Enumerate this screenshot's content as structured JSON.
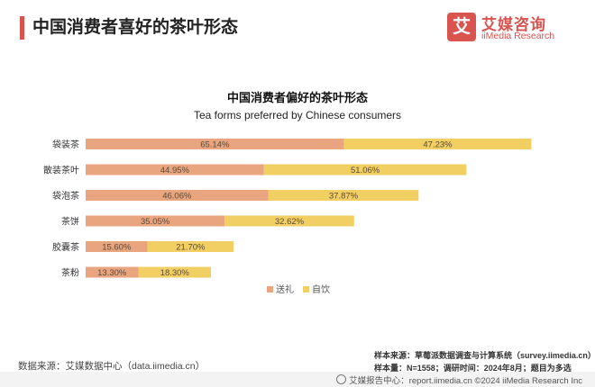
{
  "header": {
    "title": "中国消费者喜好的茶叶形态",
    "logo_mark": "艾",
    "logo_cn": "艾媒咨询",
    "logo_en": "iiMedia Research"
  },
  "chart_data": {
    "type": "bar",
    "orientation": "horizontal",
    "stacked": true,
    "title": "中国消费者偏好的茶叶形态",
    "subtitle": "Tea forms preferred by Chinese consumers",
    "categories": [
      "袋装茶",
      "散装茶叶",
      "袋泡茶",
      "茶饼",
      "胶囊茶",
      "茶粉"
    ],
    "series": [
      {
        "name": "送礼",
        "values": [
          65.14,
          44.95,
          46.06,
          35.05,
          15.6,
          13.3
        ],
        "labels": [
          "65.14%",
          "44.95%",
          "46.06%",
          "35.05%",
          "15.60%",
          "13.30%"
        ],
        "color": "#e8a57f"
      },
      {
        "name": "自饮",
        "values": [
          47.23,
          51.06,
          37.87,
          32.62,
          21.7,
          18.3
        ],
        "labels": [
          "47.23%",
          "51.06%",
          "37.87%",
          "32.62%",
          "21.70%",
          "18.30%"
        ],
        "color": "#f2cf63"
      }
    ],
    "legend_position": "bottom",
    "grid": false
  },
  "footer": {
    "source_left": "数据来源：艾媒数据中心（data.iimedia.cn）",
    "sample_source": "样本来源：草莓派数据调查与计算系统（survey.iimedia.cn）",
    "sample_info": "样本量：N=1558；调研时间：2024年8月；题目为多选",
    "bottom_text": "艾媒报告中心：report.iimedia.cn    ©2024  iiMedia Research  Inc"
  }
}
